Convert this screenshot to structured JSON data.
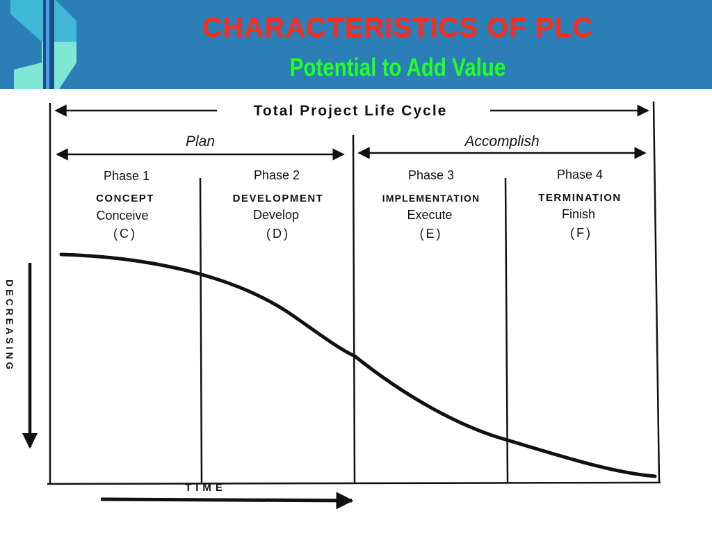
{
  "header": {
    "title": "CHARACTERISTICS OF PLC",
    "subtitle": "Potential to Add Value"
  },
  "diagram": {
    "total_label": "Total Project Life Cycle",
    "plan_label": "Plan",
    "accomplish_label": "Accomplish",
    "phases": [
      {
        "phase": "Phase 1",
        "name": "CONCEPT",
        "verb": "Conceive",
        "code": "(C)"
      },
      {
        "phase": "Phase 2",
        "name": "DEVELOPMENT",
        "verb": "Develop",
        "code": "(D)"
      },
      {
        "phase": "Phase 3",
        "name": "IMPLEMENTATION",
        "verb": "Execute",
        "code": "(E)"
      },
      {
        "phase": "Phase 4",
        "name": "TERMINATION",
        "verb": "Finish",
        "code": "(F)"
      }
    ],
    "y_axis_label": "DECREASING",
    "x_axis_label": "TIME"
  },
  "colors": {
    "header_bg": "#2b7fb6",
    "title": "#ff2a1a",
    "subtitle": "#22ff22"
  }
}
